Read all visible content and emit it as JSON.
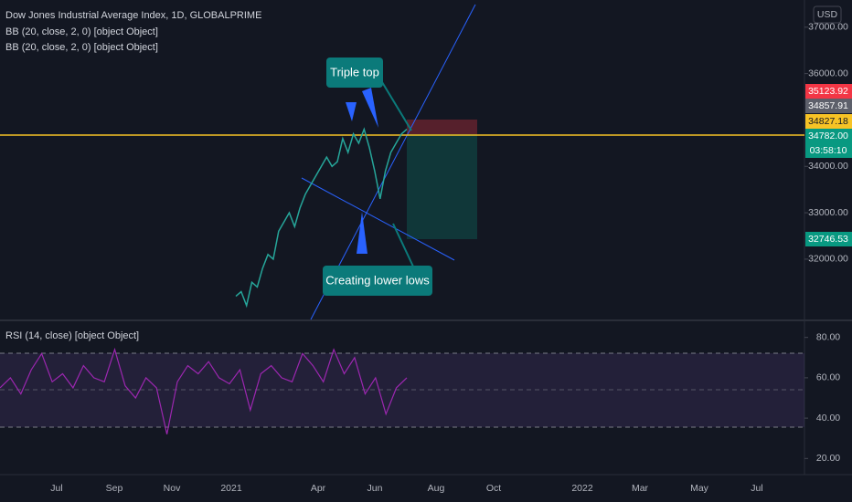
{
  "header": {
    "symbol": "Dow Jones Industrial Average Index, 1D, GLOBALPRIME",
    "indicators": [
      "BB (20, close, 2, 0) [object Object]",
      "BB (20, close, 2, 0) [object Object]"
    ],
    "currency": "USD"
  },
  "price_axis": {
    "ylim": [
      37350,
      30700
    ],
    "ticks": [
      {
        "value": 37000,
        "label": "37000.00"
      },
      {
        "value": 36000,
        "label": "36000.00"
      },
      {
        "value": 34000,
        "label": "34000.00"
      },
      {
        "value": 33000,
        "label": "33000.00"
      },
      {
        "value": 32000,
        "label": "32000.00"
      }
    ]
  },
  "price_badges": [
    "35123.92",
    "34857.91",
    "34827.18",
    "34782.00",
    "03:58:10",
    "32746.53"
  ],
  "price_line": [
    31200,
    31300,
    31000,
    31500,
    31400,
    31800,
    32100,
    32000,
    32600,
    32800,
    33000,
    32700,
    33100,
    33400,
    33600,
    33800,
    34000,
    34200,
    34000,
    34100,
    34600,
    34300,
    34700,
    34500,
    34800,
    34400,
    33900,
    33300,
    33900,
    34300,
    34500,
    34700,
    34800
  ],
  "annotations": [
    "Triple top",
    "Creating lower lows"
  ],
  "rsi": {
    "title": "RSI (14, close) [object Object]",
    "ylim": [
      88,
      12
    ],
    "ticks": [
      {
        "value": 80,
        "label": "80.00"
      },
      {
        "value": 60,
        "label": "60.00"
      },
      {
        "value": 40,
        "label": "40.00"
      },
      {
        "value": 20,
        "label": "20.00"
      }
    ],
    "values": [
      55,
      60,
      52,
      64,
      72,
      58,
      62,
      55,
      66,
      60,
      58,
      74,
      56,
      50,
      60,
      55,
      32,
      58,
      66,
      62,
      68,
      60,
      57,
      64,
      44,
      62,
      66,
      60,
      58,
      72,
      66,
      58,
      74,
      62,
      70,
      52,
      60,
      42,
      55,
      60
    ]
  },
  "time_axis": [
    "Jul",
    "Sep",
    "Nov",
    "2021",
    "Apr",
    "Jun",
    "Aug",
    "Oct",
    "2022",
    "Mar",
    "May",
    "Jul"
  ]
}
